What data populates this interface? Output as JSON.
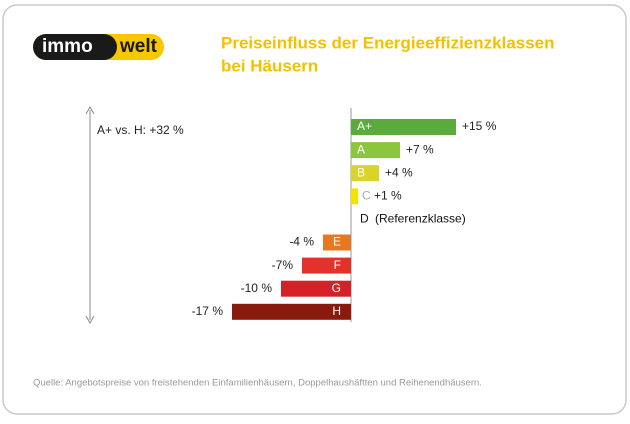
{
  "logo": {
    "left": "immo",
    "right": "welt"
  },
  "chart_data": {
    "type": "bar",
    "orientation": "horizontal",
    "title": [
      "Preiseinfluss der Energieeffizienzklassen",
      "bei Häusern"
    ],
    "categories": [
      "A+",
      "A",
      "B",
      "C",
      "D",
      "E",
      "F",
      "G",
      "H"
    ],
    "values": [
      15,
      7,
      4,
      1,
      0,
      -4,
      -7,
      -10,
      -17
    ],
    "value_labels": [
      "+15 %",
      "+7 %",
      "+4 %",
      "+1 %",
      null,
      "-4 %",
      "-7%",
      "-10 %",
      "-17 %"
    ],
    "colors": [
      "#5aab3c",
      "#8cc63f",
      "#d9d42a",
      "#f3e500",
      "#000000",
      "#e87722",
      "#e3312b",
      "#d42027",
      "#8b1a0e"
    ],
    "reference_label": "(Referenzklasse)",
    "annotation": "A+ vs. H: +32 %",
    "xlim": [
      -17,
      15
    ],
    "source": "Quelle: Angebotspreise von freistehenden Einfamilienhäusern, Doppelhaushäftten und Reihenendhäusern."
  }
}
